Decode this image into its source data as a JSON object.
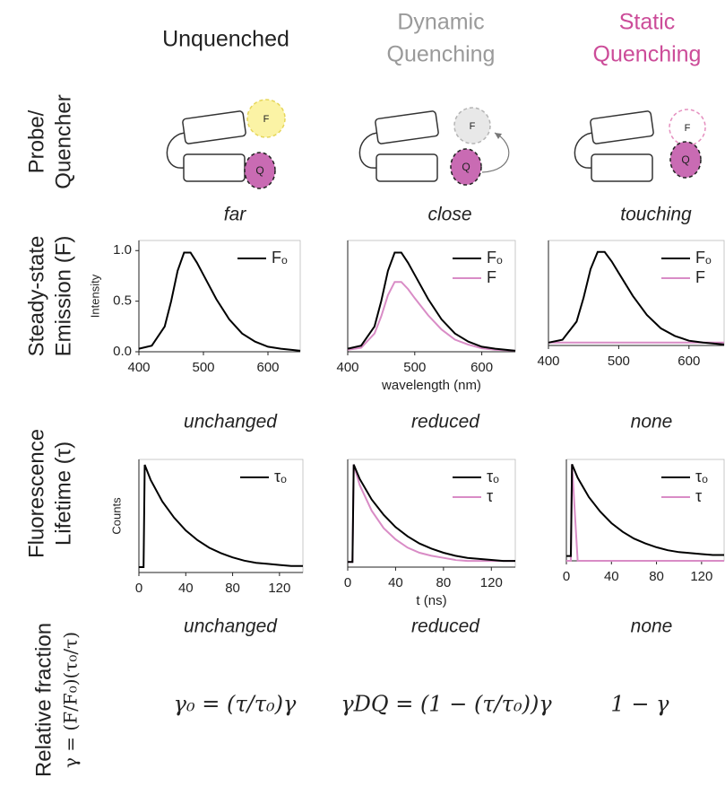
{
  "columns": [
    {
      "title": [
        "Unquenched"
      ],
      "color": "#222222"
    },
    {
      "title": [
        "Dynamic",
        "Quenching"
      ],
      "color": "#9a9a9a"
    },
    {
      "title": [
        "Static",
        "Quenching"
      ],
      "color": "#cc4c99"
    }
  ],
  "row_labels": [
    [
      "Probe/",
      "Quencher"
    ],
    [
      "Steady-state",
      "Emission (F)"
    ],
    [
      "Fluorescence",
      "Lifetime (τ)"
    ],
    [
      "Relative fraction",
      "γ = (F/F₀)(τ₀/τ)"
    ]
  ],
  "diagram_labels": {
    "fluorophore": "F",
    "quencher": "Q"
  },
  "distance": [
    "far",
    "close",
    "touching"
  ],
  "emission_change": [
    "unchanged",
    "reduced",
    "none"
  ],
  "fraction_change": [
    "unchanged",
    "reduced",
    "none"
  ],
  "equations": [
    "γ₀ = (τ/τ₀)γ",
    "γDQ = (1 − (τ/τ₀))γ",
    "1 − γ"
  ],
  "chart_data": [
    {
      "type": "line",
      "ylabel": "Intensity",
      "x": [
        400,
        420,
        440,
        450,
        460,
        470,
        480,
        490,
        500,
        520,
        540,
        560,
        580,
        600,
        620,
        650
      ],
      "xlim": [
        400,
        650
      ],
      "ylim": [
        0,
        1.1
      ],
      "xticks": [
        400,
        500,
        600
      ],
      "yticks": [
        {
          "value": 0,
          "label": "0.0"
        },
        0.5,
        {
          "value": 1,
          "label": "1.0"
        }
      ],
      "legend": "upper right",
      "series": [
        {
          "name": "Fₒ",
          "color": "#000000",
          "values": [
            0.03,
            0.06,
            0.25,
            0.5,
            0.8,
            0.98,
            0.98,
            0.88,
            0.76,
            0.52,
            0.32,
            0.18,
            0.1,
            0.05,
            0.03,
            0.01
          ]
        }
      ]
    },
    {
      "type": "line",
      "xlabel": "wavelength (nm)",
      "x": [
        400,
        420,
        440,
        450,
        460,
        470,
        480,
        490,
        500,
        520,
        540,
        560,
        580,
        600,
        620,
        650
      ],
      "xlim": [
        400,
        650
      ],
      "ylim": [
        0,
        1.1
      ],
      "xticks": [
        400,
        500,
        600
      ],
      "legend": "upper right",
      "series": [
        {
          "name": "Fₒ",
          "color": "#000000",
          "values": [
            0.03,
            0.06,
            0.25,
            0.5,
            0.8,
            0.98,
            0.98,
            0.88,
            0.76,
            0.52,
            0.32,
            0.18,
            0.1,
            0.05,
            0.03,
            0.01
          ]
        },
        {
          "name": "F",
          "color": "#d98cc6",
          "values": [
            0.02,
            0.04,
            0.18,
            0.35,
            0.56,
            0.69,
            0.69,
            0.62,
            0.53,
            0.36,
            0.22,
            0.12,
            0.07,
            0.035,
            0.02,
            0.01
          ]
        }
      ]
    },
    {
      "type": "line",
      "x": [
        400,
        420,
        440,
        450,
        460,
        470,
        480,
        490,
        500,
        520,
        540,
        560,
        580,
        600,
        620,
        650
      ],
      "xlim": [
        400,
        650
      ],
      "ylim": [
        0,
        1.1
      ],
      "xticks": [
        400,
        500,
        600
      ],
      "legend": "upper right",
      "series": [
        {
          "name": "Fₒ",
          "color": "#000000",
          "values": [
            0.03,
            0.06,
            0.25,
            0.5,
            0.8,
            0.98,
            0.98,
            0.88,
            0.76,
            0.52,
            0.32,
            0.18,
            0.1,
            0.05,
            0.03,
            0.01
          ]
        },
        {
          "name": "F",
          "color": "#d98cc6",
          "values": [
            0.03,
            0.03,
            0.03,
            0.03,
            0.03,
            0.03,
            0.03,
            0.03,
            0.03,
            0.03,
            0.03,
            0.03,
            0.03,
            0.03,
            0.03,
            0.03
          ]
        }
      ]
    },
    {
      "type": "line",
      "ylabel": "Counts",
      "x": [
        0,
        4,
        5,
        10,
        20,
        30,
        40,
        50,
        60,
        70,
        80,
        90,
        100,
        110,
        120,
        130,
        140
      ],
      "xlim": [
        0,
        140
      ],
      "ylim": [
        0,
        1.05
      ],
      "xticks": [
        0,
        40,
        80,
        120
      ],
      "legend": "upper right",
      "series": [
        {
          "name": "τₒ",
          "color": "#000000",
          "values": [
            0.05,
            0.05,
            1.0,
            0.86,
            0.66,
            0.51,
            0.39,
            0.3,
            0.23,
            0.18,
            0.14,
            0.11,
            0.09,
            0.08,
            0.07,
            0.06,
            0.06
          ]
        }
      ]
    },
    {
      "type": "line",
      "xlabel": "t (ns)",
      "x": [
        0,
        4,
        5,
        10,
        20,
        30,
        40,
        50,
        60,
        70,
        80,
        90,
        100,
        110,
        120,
        130,
        140
      ],
      "xlim": [
        0,
        140
      ],
      "ylim": [
        0,
        1.05
      ],
      "xticks": [
        0,
        40,
        80,
        120
      ],
      "legend": "upper right",
      "series": [
        {
          "name": "τₒ",
          "color": "#000000",
          "values": [
            0.05,
            0.05,
            1.0,
            0.86,
            0.66,
            0.51,
            0.39,
            0.3,
            0.23,
            0.18,
            0.14,
            0.11,
            0.09,
            0.08,
            0.07,
            0.06,
            0.06
          ]
        },
        {
          "name": "τ",
          "color": "#d98cc6",
          "values": [
            0.05,
            0.05,
            1.0,
            0.8,
            0.55,
            0.38,
            0.27,
            0.19,
            0.14,
            0.11,
            0.09,
            0.07,
            0.06,
            0.06,
            0.06,
            0.06,
            0.06
          ]
        }
      ]
    },
    {
      "type": "line",
      "x": [
        0,
        4,
        5,
        10,
        20,
        30,
        40,
        50,
        60,
        70,
        80,
        90,
        100,
        110,
        120,
        130,
        140
      ],
      "xlim": [
        0,
        140
      ],
      "ylim": [
        0,
        1.05
      ],
      "xticks": [
        0,
        40,
        80,
        120
      ],
      "legend": "upper right",
      "series": [
        {
          "name": "τₒ",
          "color": "#000000",
          "values": [
            0.05,
            0.05,
            1.0,
            0.86,
            0.66,
            0.51,
            0.39,
            0.3,
            0.23,
            0.18,
            0.14,
            0.11,
            0.09,
            0.08,
            0.07,
            0.06,
            0.06
          ]
        },
        {
          "name": "τ",
          "color": "#d98cc6",
          "values": [
            0,
            0,
            1.0,
            0,
            0,
            0,
            0,
            0,
            0,
            0,
            0,
            0,
            0,
            0,
            0,
            0,
            0
          ]
        }
      ]
    }
  ]
}
